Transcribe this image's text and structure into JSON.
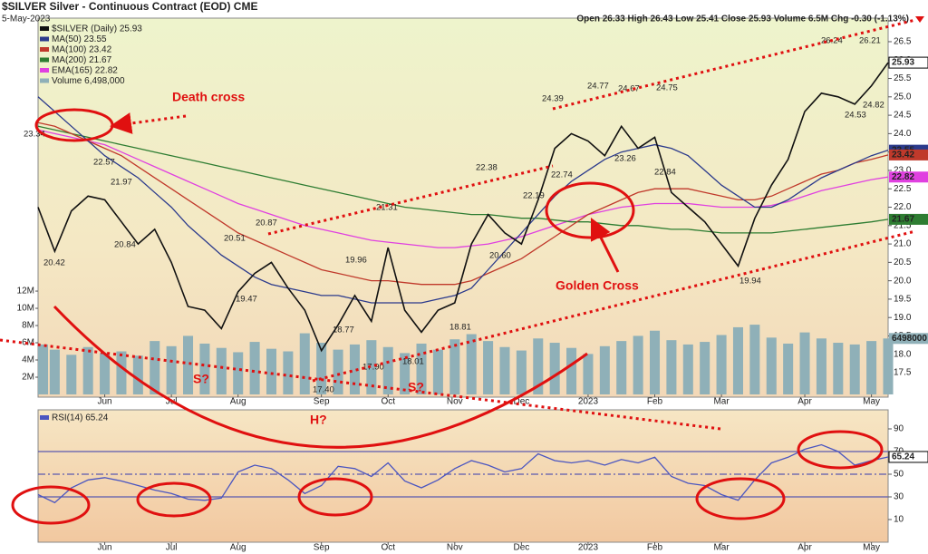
{
  "chart_data": [
    {
      "type": "line",
      "title": "$SILVER Silver - Continuous Contract (EOD) CME",
      "subtitle": "5-May-2023",
      "quote": "Open 26.33 High 26.43 Low 25.41 Close 25.93 Volume 6.5M Chg -0.30 (-1.13%)",
      "categories": [
        null,
        null,
        null,
        null,
        "Jun",
        null,
        null,
        null,
        "Jul",
        null,
        null,
        null,
        "Aug",
        null,
        null,
        null,
        null,
        "Sep",
        null,
        null,
        null,
        "Oct",
        null,
        null,
        null,
        "Nov",
        null,
        null,
        null,
        "Dec",
        null,
        null,
        null,
        "2023",
        null,
        null,
        null,
        "Feb",
        null,
        null,
        null,
        "Mar",
        null,
        null,
        null,
        null,
        "Apr",
        null,
        null,
        null,
        "May",
        null
      ],
      "series": [
        {
          "name": "$SILVER (Daily) 25.93",
          "color": "#111111",
          "values": [
            22.0,
            20.8,
            21.9,
            22.3,
            22.2,
            21.6,
            21.0,
            21.4,
            20.5,
            19.3,
            19.2,
            18.7,
            19.7,
            20.2,
            20.5,
            19.8,
            19.2,
            18.1,
            18.8,
            19.6,
            18.9,
            20.9,
            19.2,
            18.6,
            19.2,
            19.4,
            21.0,
            21.8,
            21.3,
            21.0,
            22.2,
            23.6,
            24.0,
            23.8,
            23.4,
            24.2,
            23.6,
            23.9,
            22.4,
            22.0,
            21.6,
            21.0,
            20.4,
            21.7,
            22.6,
            23.3,
            24.6,
            25.1,
            25.0,
            24.8,
            25.3,
            25.93
          ]
        },
        {
          "name": "MA(50) 23.55",
          "color": "#2b3a8c",
          "values": [
            25.0,
            24.6,
            24.2,
            23.8,
            23.4,
            23.1,
            22.8,
            22.4,
            22.0,
            21.5,
            21.1,
            20.7,
            20.4,
            20.1,
            19.9,
            19.8,
            19.7,
            19.6,
            19.6,
            19.5,
            19.4,
            19.4,
            19.4,
            19.4,
            19.5,
            19.6,
            19.8,
            20.3,
            20.8,
            21.3,
            21.8,
            22.3,
            22.7,
            23.0,
            23.3,
            23.5,
            23.6,
            23.7,
            23.6,
            23.4,
            23.0,
            22.6,
            22.3,
            22.0,
            22.0,
            22.2,
            22.5,
            22.8,
            23.0,
            23.2,
            23.4,
            23.55
          ]
        },
        {
          "name": "MA(100) 23.42",
          "color": "#c0392b",
          "values": [
            24.3,
            24.2,
            24.0,
            23.8,
            23.6,
            23.4,
            23.1,
            22.8,
            22.5,
            22.2,
            21.9,
            21.6,
            21.3,
            21.1,
            20.9,
            20.7,
            20.5,
            20.3,
            20.2,
            20.1,
            20.0,
            20.0,
            19.95,
            19.9,
            19.9,
            19.9,
            20.0,
            20.2,
            20.4,
            20.6,
            20.9,
            21.2,
            21.5,
            21.8,
            22.0,
            22.2,
            22.4,
            22.5,
            22.5,
            22.5,
            22.4,
            22.3,
            22.2,
            22.2,
            22.3,
            22.5,
            22.7,
            22.9,
            23.0,
            23.2,
            23.3,
            23.42
          ]
        },
        {
          "name": "MA(200) 21.67",
          "color": "#2e7d32",
          "values": [
            24.2,
            24.1,
            24.0,
            23.9,
            23.8,
            23.7,
            23.6,
            23.5,
            23.4,
            23.3,
            23.2,
            23.1,
            23.0,
            22.9,
            22.8,
            22.7,
            22.6,
            22.5,
            22.4,
            22.3,
            22.2,
            22.1,
            22.0,
            21.95,
            21.9,
            21.85,
            21.8,
            21.8,
            21.75,
            21.7,
            21.7,
            21.65,
            21.6,
            21.6,
            21.55,
            21.5,
            21.5,
            21.45,
            21.4,
            21.4,
            21.35,
            21.3,
            21.3,
            21.3,
            21.3,
            21.35,
            21.4,
            21.45,
            21.5,
            21.55,
            21.6,
            21.67
          ]
        },
        {
          "name": "EMA(165) 22.82",
          "color": "#e040e0",
          "values": [
            24.1,
            24.0,
            23.9,
            23.8,
            23.7,
            23.5,
            23.3,
            23.1,
            22.9,
            22.7,
            22.5,
            22.3,
            22.1,
            21.95,
            21.8,
            21.65,
            21.5,
            21.4,
            21.3,
            21.2,
            21.1,
            21.05,
            21.0,
            20.95,
            20.9,
            20.9,
            20.95,
            21.0,
            21.1,
            21.2,
            21.35,
            21.5,
            21.65,
            21.8,
            21.9,
            22.0,
            22.05,
            22.1,
            22.1,
            22.1,
            22.05,
            22.0,
            22.0,
            22.0,
            22.05,
            22.15,
            22.3,
            22.45,
            22.55,
            22.65,
            22.75,
            22.82
          ]
        },
        {
          "name": "Volume 6,498,000",
          "color": "#8fb0b8",
          "type": "bar",
          "axis": "y2",
          "values": [
            5800000,
            5200000,
            4600000,
            5500000,
            4800000,
            5000000,
            4500000,
            6200000,
            5600000,
            6800000,
            5900000,
            5400000,
            4900000,
            6100000,
            5300000,
            5000000,
            7100000,
            6000000,
            5200000,
            5800000,
            6300000,
            5500000,
            4800000,
            5900000,
            5200000,
            6400000,
            7000000,
            6200000,
            5500000,
            5100000,
            6500000,
            6000000,
            5400000,
            4700000,
            5600000,
            6200000,
            6800000,
            7400000,
            6300000,
            5800000,
            6100000,
            6900000,
            7800000,
            8100000,
            6600000,
            5900000,
            7200000,
            6500000,
            6000000,
            5800000,
            6200000,
            6498000
          ]
        }
      ],
      "ylim": [
        16.91,
        27.14
      ],
      "yticks": [
        17.5,
        {
          "value": 18,
          "label": "18.0"
        },
        18.5,
        {
          "value": 19,
          "label": "19.0"
        },
        19.5,
        {
          "value": 20,
          "label": "20.0"
        },
        20.5,
        {
          "value": 21,
          "label": "21.0"
        },
        21.5,
        {
          "value": 22,
          "label": "22.0"
        },
        22.5,
        {
          "value": 23,
          "label": "23.0"
        },
        23.5,
        {
          "value": 24,
          "label": "24.0"
        },
        24.5,
        {
          "value": 25,
          "label": "25.0"
        },
        25.5,
        {
          "value": 26,
          "label": "26.0"
        },
        26.5
      ],
      "y2lim": [
        0,
        43700000
      ],
      "y2ticks": [
        {
          "value": 2000000,
          "label": "2M"
        },
        {
          "value": 4000000,
          "label": "4M"
        },
        {
          "value": 6000000,
          "label": "6M"
        },
        {
          "value": 8000000,
          "label": "8M"
        },
        {
          "value": 10000000,
          "label": "10M"
        },
        {
          "value": 12000000,
          "label": "12M"
        }
      ],
      "annotations": [
        "Death cross",
        "Golden Cross",
        "S?",
        "H?",
        "S?"
      ],
      "price_labels": [
        "23.34",
        "22.57",
        "21.97",
        "20.42",
        "20.84",
        "20.51",
        "20.87",
        "19.47",
        "17.40",
        "18.77",
        "19.96",
        "17.90",
        "21.31",
        "18.01",
        "18.81",
        "22.38",
        "22.19",
        "20.60",
        "24.39",
        "22.74",
        "24.77",
        "24.67",
        "23.26",
        "24.75",
        "22.84",
        "19.94",
        "26.24",
        "26.21",
        "24.53",
        "24.82"
      ]
    },
    {
      "type": "line",
      "categories": [
        null,
        null,
        null,
        null,
        "Jun",
        null,
        null,
        null,
        "Jul",
        null,
        null,
        null,
        "Aug",
        null,
        null,
        null,
        null,
        "Sep",
        null,
        null,
        null,
        "Oct",
        null,
        null,
        null,
        "Nov",
        null,
        null,
        null,
        "Dec",
        null,
        null,
        null,
        "2023",
        null,
        null,
        null,
        "Feb",
        null,
        null,
        null,
        "Mar",
        null,
        null,
        null,
        null,
        "Apr",
        null,
        null,
        null,
        "May",
        null
      ],
      "series": [
        {
          "name": "RSI(14) 65.24",
          "color": "#4a55c0",
          "values": [
            32,
            25,
            38,
            45,
            47,
            44,
            40,
            36,
            33,
            28,
            27,
            29,
            52,
            58,
            55,
            45,
            33,
            40,
            57,
            55,
            48,
            60,
            44,
            38,
            45,
            55,
            62,
            58,
            52,
            55,
            68,
            62,
            60,
            62,
            58,
            63,
            60,
            65,
            48,
            42,
            40,
            32,
            27,
            45,
            60,
            65,
            72,
            76,
            70,
            58,
            62,
            65.24
          ]
        }
      ],
      "ylim": [
        -10,
        106.8
      ],
      "yticks": [
        10,
        30,
        50,
        70,
        90
      ],
      "reference_lines": [
        30,
        50,
        70
      ]
    }
  ]
}
